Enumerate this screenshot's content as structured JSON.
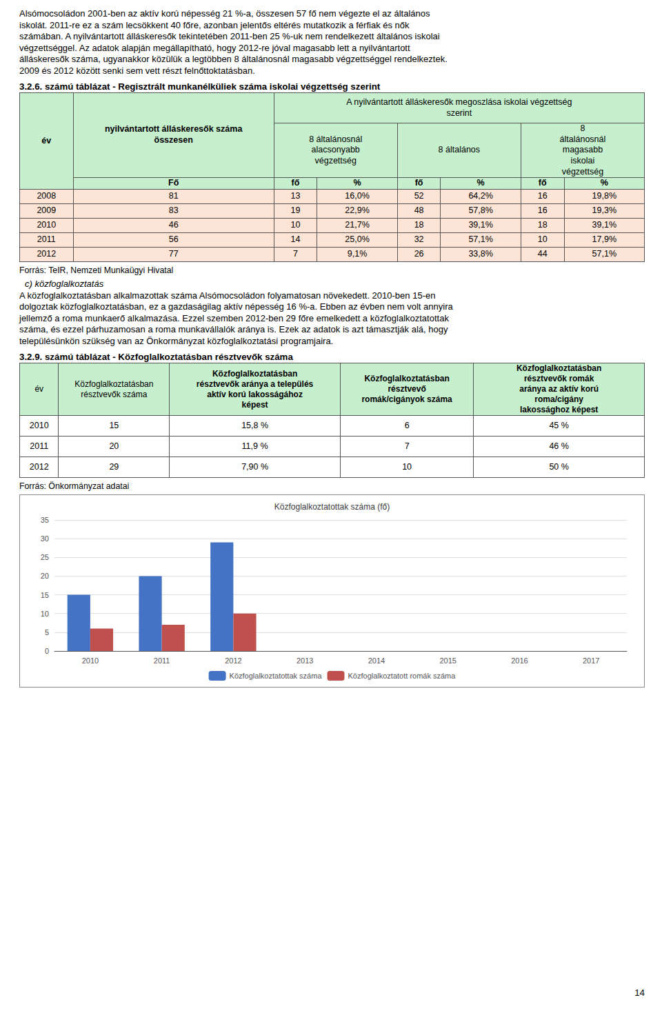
{
  "intro_lines": [
    "Alsómocsoládon 2001-ben az aktív korú népesség 21 %-a, összesen 57 fő nem végezte el az általános",
    "iskolát. 2011-re ez a szám lecsökkent 40 főre, azonban jelentős eltérés mutatkozik a férfiak és nők",
    "számában. A nyilvántartott álláskeresők tekintetében 2011-ben 25 %-uk nem rendelkezett általános iskolai",
    "végzettséggel. Az adatok alapján megállapítható, hogy 2012-re jóval magasabb lett a nyilvántartott",
    "álláskeresők száma, ugyanakkor közülük a legtöbben 8 általánosnál magasabb végzettséggel rendelkeztek.",
    "2009 és 2012 között senki sem vett részt felnőttoktatásban."
  ],
  "table1": {
    "title": "3.2.6. számú táblázat - Regisztrált munkanélküliek száma iskolai végzettség szerint",
    "header_color": "#c6efce",
    "row_color": "#fce4d6",
    "year_header": [
      "év"
    ],
    "total_header": [
      "nyilvántartott álláskeresők száma",
      "összesen"
    ],
    "group_header": [
      "A nyilvántartott álláskeresők megoszlása iskolai végzettség",
      "szerint"
    ],
    "category_headers": [
      [
        "8 általánosnál",
        "alacsonyabb",
        "végzettség"
      ],
      [
        "8 általános"
      ],
      [
        "8",
        "általánosnál",
        "magasabb",
        "iskolai",
        "végzettség"
      ]
    ],
    "sub_headers": [
      "Fő",
      "fő",
      "%",
      "fő",
      "%",
      "fő",
      "%"
    ],
    "rows": [
      [
        "2008",
        "81",
        "13",
        "16,0%",
        "52",
        "64,2%",
        "16",
        "19,8%"
      ],
      [
        "2009",
        "83",
        "19",
        "22,9%",
        "48",
        "57,8%",
        "16",
        "19,3%"
      ],
      [
        "2010",
        "46",
        "10",
        "21,7%",
        "18",
        "39,1%",
        "18",
        "39,1%"
      ],
      [
        "2011",
        "56",
        "14",
        "25,0%",
        "32",
        "57,1%",
        "10",
        "17,9%"
      ],
      [
        "2012",
        "77",
        "7",
        "9,1%",
        "26",
        "33,8%",
        "44",
        "57,1%"
      ]
    ],
    "source": "Forrás: TeIR, Nemzeti Munkaügyi Hivatal"
  },
  "section_text": "c) közfoglalkoztatás",
  "middle_lines": [
    "A közfoglalkoztatásban alkalmazottak száma Alsómocsoládon folyamatosan növekedett. 2010-ben 15-en",
    "dolgoztak közfoglalkoztatásban, ez a gazdaságilag aktív népesség 16 %-a. Ebben az évben nem volt annyira",
    "jellemző a roma munkaerő alkalmazása. Ezzel szemben 2012-ben 29 főre emelkedett a közfoglalkoztatottak",
    "száma, és ezzel párhuzamosan a roma munkavállalók aránya is. Ezek az adatok is azt támasztják alá, hogy",
    "településünkön szükség van az Önkormányzat közfoglalkoztatási programjaira."
  ],
  "table2": {
    "title": "3.2.9. számú táblázat - Közfoglalkoztatásban résztvevők száma",
    "header_color": "#c6efce",
    "col_headers": [
      [
        "év"
      ],
      [
        "Közfoglalkoztatásban",
        "résztvevők száma"
      ],
      [
        "Közfoglalkoztatásban",
        "résztvevők aránya a település",
        "aktív korú lakosságához",
        "képest"
      ],
      [
        "Közfoglalkoztatásban",
        "résztvevő",
        "romák/cigányok száma"
      ],
      [
        "Közfoglalkoztatásban",
        "résztvevők romák",
        "aránya az aktív korú",
        "roma/cigány",
        "lakossághoz képest"
      ]
    ],
    "rows": [
      [
        "2010",
        "15",
        "15,8 %",
        "6",
        "45 %"
      ],
      [
        "2011",
        "20",
        "11,9 %",
        "7",
        "46 %"
      ],
      [
        "2012",
        "29",
        "7,90 %",
        "10",
        "50 %"
      ]
    ],
    "source": "Forrás: Önkormányzat  adatai"
  },
  "chart_data": {
    "type": "bar",
    "title": "Közfoglalkoztatottak száma (fő)",
    "categories": [
      "2010",
      "2011",
      "2012",
      "2013",
      "2014",
      "2015",
      "2016",
      "2017"
    ],
    "series": [
      {
        "name": "Közfoglalkoztatottak száma",
        "color": "#4472c4",
        "values": [
          15,
          20,
          29,
          0,
          0,
          0,
          0,
          0
        ]
      },
      {
        "name": "Közfoglalkoztatott romák száma",
        "color": "#c0504d",
        "values": [
          6,
          7,
          10,
          0,
          0,
          0,
          0,
          0
        ]
      }
    ],
    "ylim": [
      0,
      35
    ],
    "yticks": [
      0,
      5,
      10,
      15,
      20,
      25,
      30,
      35
    ],
    "grid": true,
    "legend": "bottom"
  },
  "page_number": "14"
}
